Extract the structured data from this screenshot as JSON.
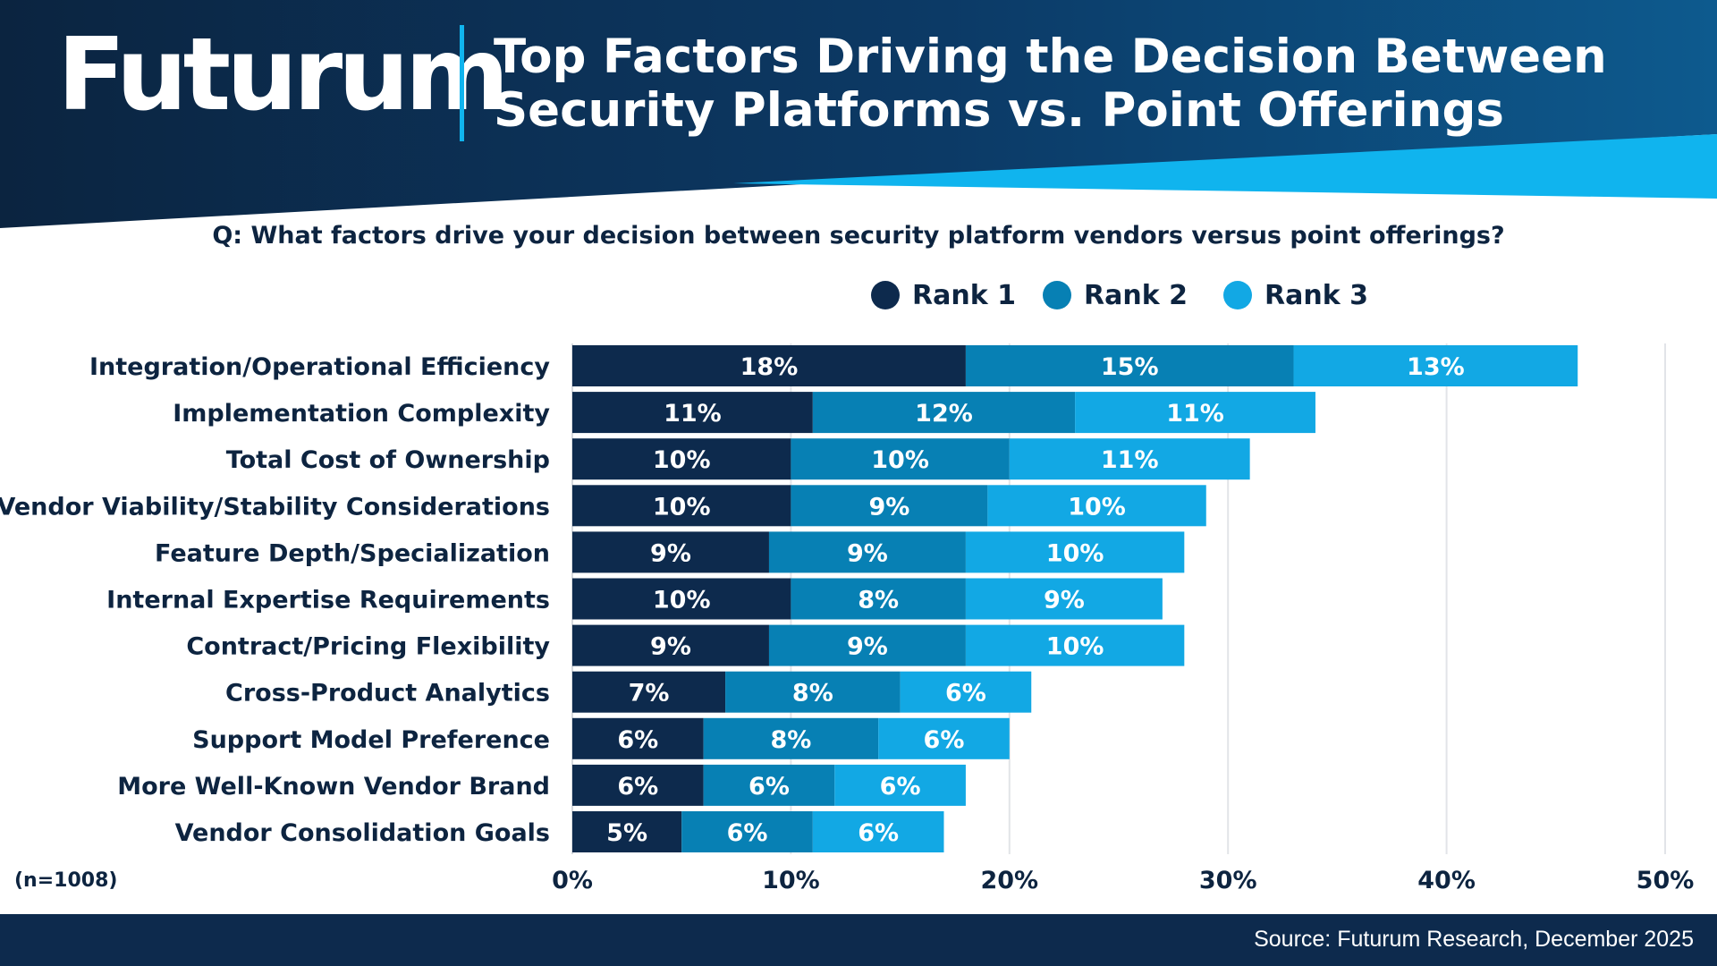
{
  "header": {
    "logo_text": "Futurum",
    "title_line1": "Top Factors Driving the Decision Between",
    "title_line2": "Security Platforms vs. Point Offerings"
  },
  "question": "Q: What factors drive your decision between security platform vendors versus point offerings?",
  "sample_note": "(n=1008)",
  "footer": {
    "source": "Source: Futurum Research, December 2025"
  },
  "colors": {
    "rank1": "#0d2a4d",
    "rank2": "#0780b4",
    "rank3": "#12a8e4",
    "header_dark": "#0b2440",
    "header_accent": "#10b4ee",
    "footer_bg": "#0d2a4d"
  },
  "chart_data": {
    "type": "bar",
    "orientation": "horizontal",
    "stacked": true,
    "title": "Top Factors Driving the Decision Between Security Platforms vs. Point Offerings",
    "legend_position": "top-right",
    "grid": true,
    "xlim": [
      0,
      50
    ],
    "x_ticks": [
      "0%",
      "10%",
      "20%",
      "30%",
      "40%",
      "50%"
    ],
    "x_tick_values": [
      0,
      10,
      20,
      30,
      40,
      50
    ],
    "categories": [
      "Integration/Operational Efficiency",
      "Implementation Complexity",
      "Total Cost of Ownership",
      "Vendor Viability/Stability Considerations",
      "Feature Depth/Specialization",
      "Internal Expertise Requirements",
      "Contract/Pricing Flexibility",
      "Cross-Product Analytics",
      "Support Model Preference",
      "More Well-Known Vendor Brand",
      "Vendor Consolidation Goals"
    ],
    "series": [
      {
        "name": "Rank 1",
        "values": [
          18,
          11,
          10,
          10,
          9,
          10,
          9,
          7,
          6,
          6,
          5
        ]
      },
      {
        "name": "Rank 2",
        "values": [
          15,
          12,
          10,
          9,
          9,
          8,
          9,
          8,
          8,
          6,
          6
        ]
      },
      {
        "name": "Rank 3",
        "values": [
          13,
          11,
          11,
          10,
          10,
          9,
          10,
          6,
          6,
          6,
          6
        ]
      }
    ],
    "label_suffix": "%"
  }
}
